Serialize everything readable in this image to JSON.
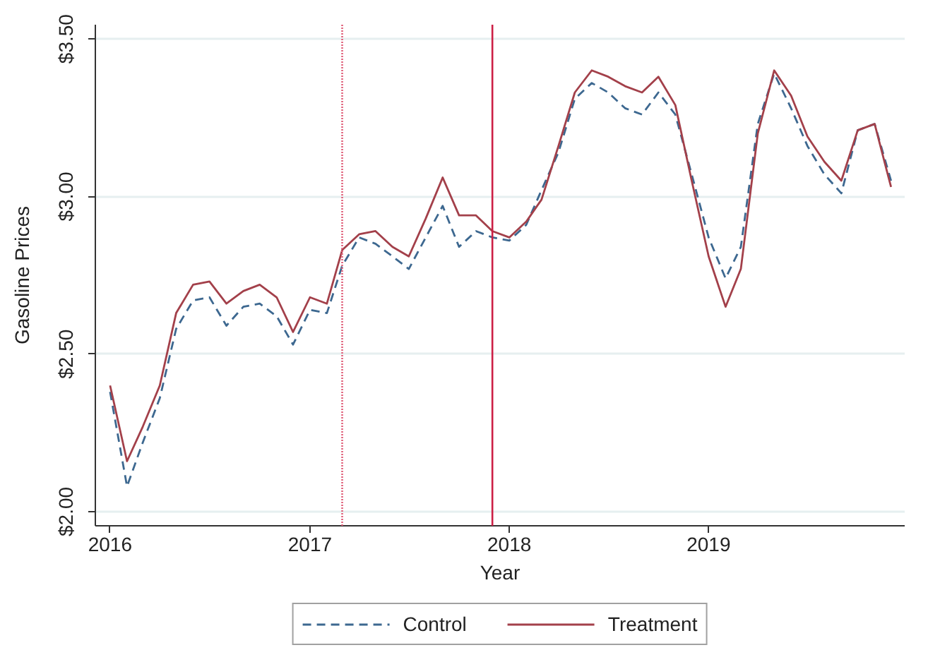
{
  "chart_data": {
    "type": "line",
    "xlabel": "Year",
    "ylabel": "Gasoline Prices",
    "x": [
      "2016-01",
      "2016-02",
      "2016-03",
      "2016-04",
      "2016-05",
      "2016-06",
      "2016-07",
      "2016-08",
      "2016-09",
      "2016-10",
      "2016-11",
      "2016-12",
      "2017-01",
      "2017-02",
      "2017-03",
      "2017-04",
      "2017-05",
      "2017-06",
      "2017-07",
      "2017-08",
      "2017-09",
      "2017-10",
      "2017-11",
      "2017-12",
      "2018-01",
      "2018-02",
      "2018-03",
      "2018-04",
      "2018-05",
      "2018-06",
      "2018-07",
      "2018-08",
      "2018-09",
      "2018-10",
      "2018-11",
      "2018-12",
      "2019-01",
      "2019-02",
      "2019-03",
      "2019-04",
      "2019-05",
      "2019-06",
      "2019-07",
      "2019-08",
      "2019-09",
      "2019-10",
      "2019-11",
      "2019-12"
    ],
    "series": [
      {
        "name": "Control",
        "color": "#3d6890",
        "line_style": "dashed",
        "values": [
          2.38,
          2.08,
          2.22,
          2.36,
          2.58,
          2.67,
          2.68,
          2.59,
          2.65,
          2.66,
          2.62,
          2.53,
          2.64,
          2.63,
          2.78,
          2.87,
          2.85,
          2.81,
          2.77,
          2.87,
          2.97,
          2.84,
          2.89,
          2.87,
          2.86,
          2.91,
          3.02,
          3.14,
          3.31,
          3.36,
          3.33,
          3.28,
          3.26,
          3.33,
          3.26,
          3.07,
          2.87,
          2.74,
          2.84,
          3.23,
          3.39,
          3.28,
          3.16,
          3.07,
          3.01,
          3.21,
          3.23,
          3.05
        ]
      },
      {
        "name": "Treatment",
        "color": "#a3404a",
        "line_style": "solid",
        "values": [
          2.4,
          2.16,
          2.27,
          2.4,
          2.63,
          2.72,
          2.73,
          2.66,
          2.7,
          2.72,
          2.68,
          2.57,
          2.68,
          2.66,
          2.83,
          2.88,
          2.89,
          2.84,
          2.81,
          2.93,
          3.06,
          2.94,
          2.94,
          2.89,
          2.87,
          2.92,
          2.99,
          3.16,
          3.33,
          3.4,
          3.38,
          3.35,
          3.33,
          3.38,
          3.29,
          3.05,
          2.81,
          2.65,
          2.77,
          3.2,
          3.4,
          3.32,
          3.19,
          3.11,
          3.05,
          3.21,
          3.23,
          3.03
        ]
      }
    ],
    "xlim": [
      "2015-12-05",
      "2019-12-26"
    ],
    "xticks": [
      {
        "value": "2016-01-01",
        "label": "2016"
      },
      {
        "value": "2017-01-01",
        "label": "2017"
      },
      {
        "value": "2018-01-01",
        "label": "2018"
      },
      {
        "value": "2019-01-01",
        "label": "2019"
      }
    ],
    "ylim": [
      1.955,
      3.545
    ],
    "yticks": [
      {
        "value": 2,
        "label": "$2.00"
      },
      {
        "value": 2.5,
        "label": "$2.50"
      },
      {
        "value": 3,
        "label": "$3.00"
      },
      {
        "value": 3.5,
        "label": "$3.50"
      }
    ],
    "ref_lines": [
      {
        "axis": "x",
        "value": "2017-03",
        "color": "#e0607a",
        "line_style": "dotted"
      },
      {
        "axis": "x",
        "value": "2017-12",
        "color": "#cc1f45",
        "line_style": "solid"
      }
    ],
    "grid": "y",
    "legend": "bottom"
  }
}
